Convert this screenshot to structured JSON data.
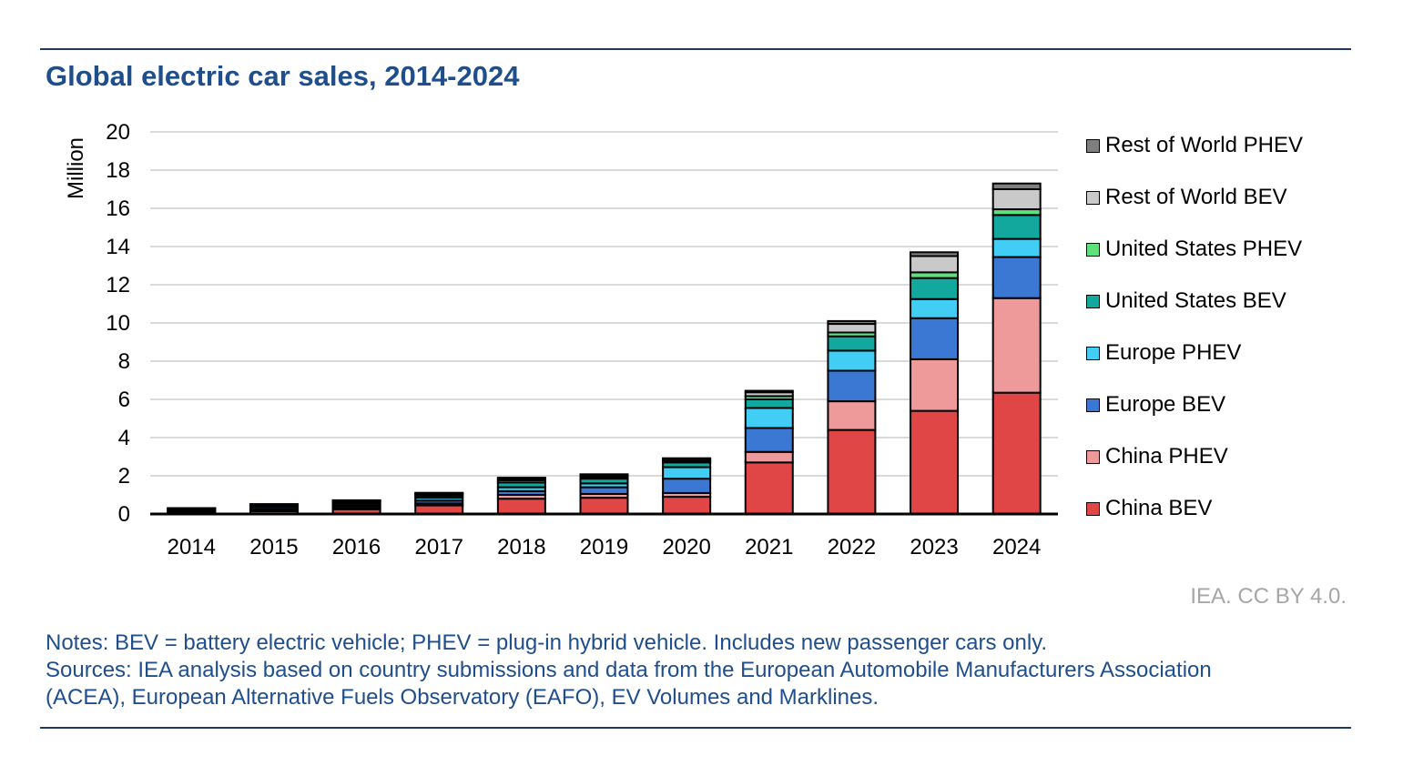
{
  "title": "Global electric car sales, 2014-2024",
  "credit": "IEA. CC BY 4.0.",
  "notes": [
    "Notes: BEV = battery electric vehicle; PHEV = plug-in hybrid vehicle. Includes new passenger cars only.",
    "Sources: IEA analysis based on country submissions and data from the European Automobile Manufacturers Association",
    "(ACEA), European Alternative Fuels Observatory (EAFO), EV Volumes and Marklines."
  ],
  "legend": [
    {
      "label": "Rest of World PHEV",
      "color": "#7f7f7f"
    },
    {
      "label": "Rest of World BEV",
      "color": "#c9c9c9"
    },
    {
      "label": "United States PHEV",
      "color": "#5ee07a"
    },
    {
      "label": "United States BEV",
      "color": "#13a89e"
    },
    {
      "label": "Europe PHEV",
      "color": "#41cdf4"
    },
    {
      "label": "Europe BEV",
      "color": "#3a78d4"
    },
    {
      "label": "China PHEV",
      "color": "#ee9a9a"
    },
    {
      "label": "China BEV",
      "color": "#e04646"
    }
  ],
  "chart_data": {
    "type": "bar",
    "stacked": true,
    "ylabel": "Million",
    "ylim": [
      0,
      20
    ],
    "yticks": [
      0,
      2,
      4,
      6,
      8,
      10,
      12,
      14,
      16,
      18,
      20
    ],
    "grid": true,
    "legend_position": "right",
    "categories": [
      "2014",
      "2015",
      "2016",
      "2017",
      "2018",
      "2019",
      "2020",
      "2021",
      "2022",
      "2023",
      "2024"
    ],
    "series": [
      {
        "name": "China BEV",
        "color": "#e04646",
        "values": [
          0.05,
          0.15,
          0.25,
          0.45,
          0.8,
          0.85,
          0.9,
          2.7,
          4.4,
          5.4,
          6.35
        ]
      },
      {
        "name": "China PHEV",
        "color": "#ee9a9a",
        "values": [
          0.02,
          0.05,
          0.08,
          0.1,
          0.2,
          0.2,
          0.2,
          0.55,
          1.5,
          2.7,
          4.95
        ]
      },
      {
        "name": "Europe BEV",
        "color": "#3a78d4",
        "values": [
          0.05,
          0.08,
          0.1,
          0.15,
          0.2,
          0.35,
          0.75,
          1.25,
          1.6,
          2.15,
          2.15
        ]
      },
      {
        "name": "Europe PHEV",
        "color": "#41cdf4",
        "values": [
          0.05,
          0.1,
          0.1,
          0.15,
          0.2,
          0.2,
          0.6,
          1.05,
          1.05,
          1.0,
          0.95
        ]
      },
      {
        "name": "United States BEV",
        "color": "#13a89e",
        "values": [
          0.06,
          0.07,
          0.08,
          0.1,
          0.25,
          0.25,
          0.25,
          0.45,
          0.75,
          1.1,
          1.25
        ]
      },
      {
        "name": "United States PHEV",
        "color": "#5ee07a",
        "values": [
          0.06,
          0.04,
          0.07,
          0.09,
          0.12,
          0.08,
          0.07,
          0.17,
          0.2,
          0.3,
          0.3
        ]
      },
      {
        "name": "Rest of World BEV",
        "color": "#c9c9c9",
        "values": [
          0.01,
          0.01,
          0.02,
          0.04,
          0.08,
          0.1,
          0.1,
          0.2,
          0.45,
          0.85,
          1.05
        ]
      },
      {
        "name": "Rest of World PHEV",
        "color": "#7f7f7f",
        "values": [
          0.01,
          0.02,
          0.02,
          0.03,
          0.05,
          0.05,
          0.05,
          0.08,
          0.15,
          0.2,
          0.3
        ]
      }
    ]
  }
}
